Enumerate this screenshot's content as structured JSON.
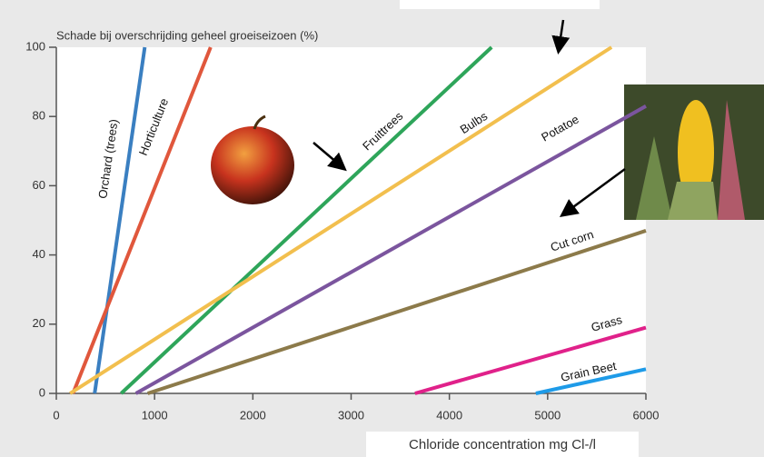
{
  "chart_data": {
    "type": "line",
    "title": "Schade bij overschrijding geheel groeiseizoen (%)",
    "x_label": "Chloride concentration mg Cl-/l",
    "xlim": [
      0,
      6000
    ],
    "xticks": [
      0,
      1000,
      2000,
      3000,
      4000,
      5000,
      6000
    ],
    "ylim": [
      0,
      100
    ],
    "yticks": [
      0,
      20,
      40,
      60,
      80,
      100
    ],
    "series": [
      {
        "name": "Orchard (trees)",
        "color": "#3a7fc1",
        "x": [
          390,
          900
        ],
        "values": [
          0,
          100
        ]
      },
      {
        "name": "Horticulture",
        "color": "#e0573c",
        "x": [
          170,
          1570
        ],
        "values": [
          0,
          100
        ]
      },
      {
        "name": "Fruittrees",
        "color": "#2ea55a",
        "x": [
          660,
          4430
        ],
        "values": [
          0,
          100
        ]
      },
      {
        "name": "Bulbs",
        "color": "#f2bf4e",
        "x": [
          140,
          5650
        ],
        "values": [
          0,
          100
        ]
      },
      {
        "name": "Potatoe",
        "color": "#7b559e",
        "x": [
          810,
          6000
        ],
        "values": [
          0,
          83
        ]
      },
      {
        "name": "Cut corn",
        "color": "#8c7a4a",
        "x": [
          930,
          6000
        ],
        "values": [
          0,
          47
        ]
      },
      {
        "name": "Grass",
        "color": "#e0218a",
        "x": [
          3650,
          6000
        ],
        "values": [
          0,
          19
        ]
      },
      {
        "name": "Grain Beet",
        "color": "#1e9be8",
        "x": [
          4880,
          6000
        ],
        "values": [
          0,
          7
        ]
      }
    ]
  }
}
